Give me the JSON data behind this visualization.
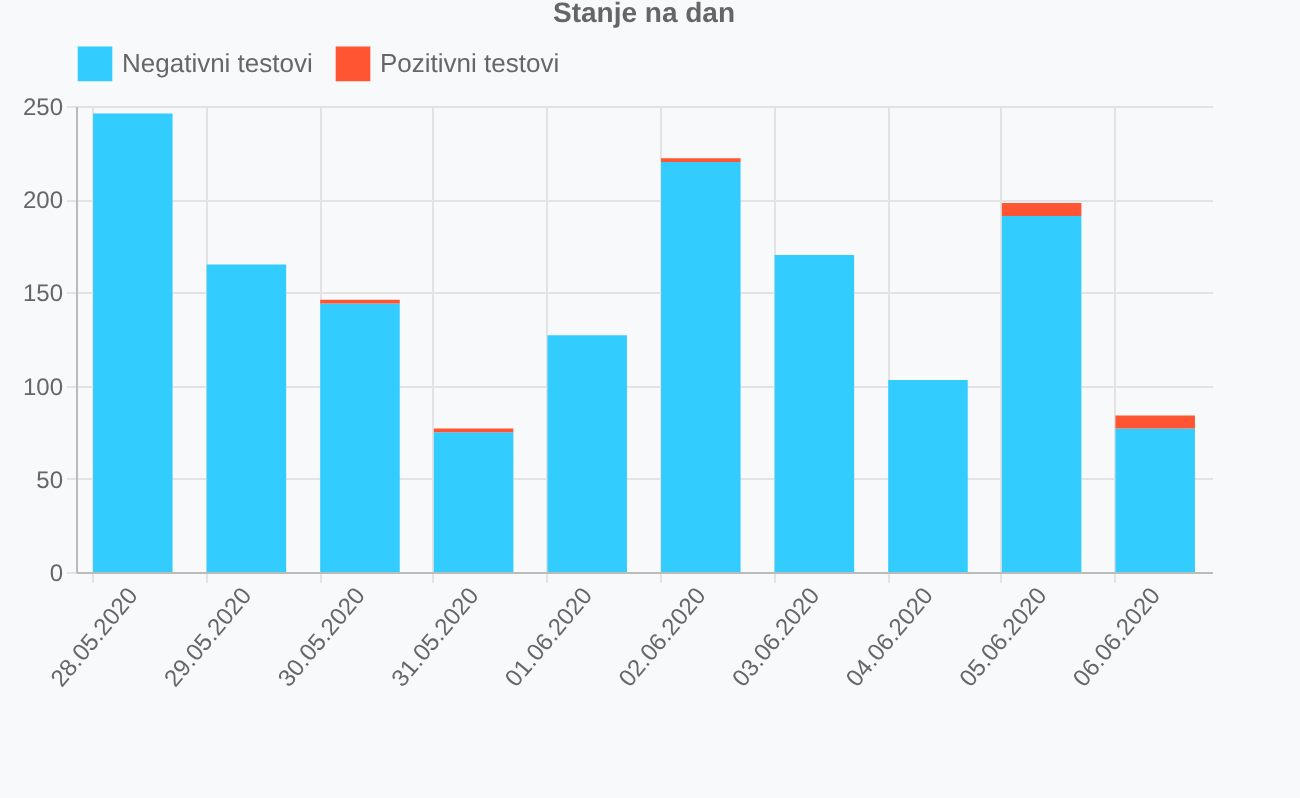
{
  "chart_data": {
    "type": "bar",
    "title": "Stanje na dan",
    "stacked": true,
    "legend": "top",
    "grid": true,
    "categories": [
      "28.05.2020",
      "29.05.2020",
      "30.05.2020",
      "31.05.2020",
      "01.06.2020",
      "02.06.2020",
      "03.06.2020",
      "04.06.2020",
      "05.06.2020",
      "06.06.2020"
    ],
    "series": [
      {
        "name": "Negativni testovi",
        "color": "#33ccff",
        "values": [
          246,
          165,
          144,
          75,
          127,
          220,
          170,
          103,
          191,
          77
        ]
      },
      {
        "name": "Pozitivni testovi",
        "color": "#ff5533",
        "values": [
          0,
          0,
          2,
          2,
          0,
          2,
          0,
          0,
          7,
          7
        ]
      }
    ],
    "ylim": [
      0,
      250
    ],
    "yticks": [
      0,
      50,
      100,
      150,
      200,
      250
    ]
  }
}
